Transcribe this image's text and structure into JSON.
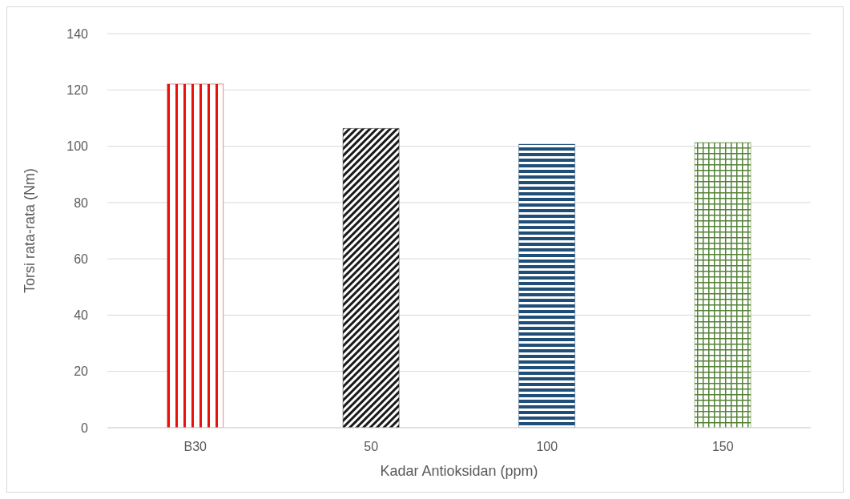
{
  "chart_data": {
    "type": "bar",
    "xlabel": "Kadar Antioksidan (ppm)",
    "ylabel": "Torsi rata-rata (Nm)",
    "categories": [
      "B30",
      "50",
      "100",
      "150"
    ],
    "values": [
      122.1,
      106.3,
      100.7,
      101.3
    ],
    "colors": [
      "#e8120c",
      "#1a1a1a",
      "#1f4e79",
      "#548235"
    ],
    "ylim": [
      0,
      140
    ],
    "yticks": [
      0,
      20,
      40,
      60,
      80,
      100,
      120,
      140
    ],
    "grid": "y",
    "legend": false
  }
}
